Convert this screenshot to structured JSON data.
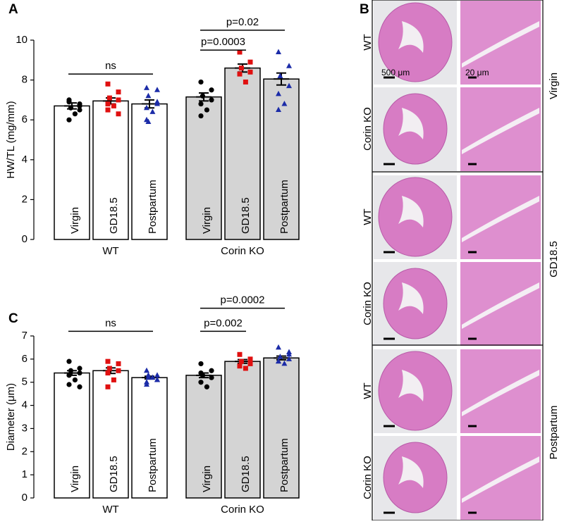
{
  "chart_data": [
    {
      "type": "bar",
      "panel": "A",
      "ylabel": "HW/TL (mg/mm)",
      "categories": [
        "Virgin",
        "GD18.5",
        "Postpartum",
        "Virgin",
        "GD18.5",
        "Postpartum"
      ],
      "groups": [
        "WT",
        "Corin KO"
      ],
      "group_of": [
        0,
        0,
        0,
        1,
        1,
        1
      ],
      "group_colors": [
        "#ffffff",
        "#d4d4d4"
      ],
      "point_colors": [
        "#000000",
        "#e01010",
        "#1c2ca8"
      ],
      "point_markers": [
        "circle",
        "square",
        "triangle"
      ],
      "values": [
        6.7,
        6.95,
        6.8,
        7.15,
        8.6,
        8.05
      ],
      "errors": [
        0.15,
        0.15,
        0.2,
        0.2,
        0.2,
        0.3
      ],
      "points": [
        [
          7.0,
          6.8,
          6.6,
          6.5,
          6.9,
          6.3,
          6.0,
          6.7
        ],
        [
          7.8,
          7.4,
          7.1,
          7.0,
          6.8,
          6.7,
          6.5,
          6.3
        ],
        [
          7.6,
          7.5,
          7.2,
          6.9,
          6.6,
          6.4,
          6.0,
          6.8,
          5.9
        ],
        [
          7.9,
          7.5,
          7.2,
          7.0,
          6.8,
          6.5,
          6.2
        ],
        [
          9.4,
          8.9,
          8.6,
          8.4,
          8.3,
          7.9
        ],
        [
          9.4,
          8.7,
          8.2,
          7.7,
          7.3,
          6.8,
          6.5
        ]
      ],
      "ylim": [
        0,
        10
      ],
      "yticks": [
        0,
        2,
        4,
        6,
        8,
        10
      ],
      "annotations": [
        {
          "text": "ns",
          "from": 0,
          "to": 2,
          "y": 8.3
        },
        {
          "text": "p=0.0003",
          "from": 3,
          "to": 4,
          "y": 9.5
        },
        {
          "text": "p=0.02",
          "from": 3,
          "to": 5,
          "y": 10.5
        }
      ]
    },
    {
      "type": "bar",
      "panel": "C",
      "ylabel": "Diameter (μm)",
      "categories": [
        "Virgin",
        "GD18.5",
        "Postpartum",
        "Virgin",
        "GD18.5",
        "Postpartum"
      ],
      "groups": [
        "WT",
        "Corin KO"
      ],
      "group_of": [
        0,
        0,
        0,
        1,
        1,
        1
      ],
      "group_colors": [
        "#ffffff",
        "#d4d4d4"
      ],
      "point_colors": [
        "#000000",
        "#e01010",
        "#1c2ca8"
      ],
      "point_markers": [
        "circle",
        "square",
        "triangle"
      ],
      "values": [
        5.4,
        5.5,
        5.2,
        5.3,
        5.9,
        6.05
      ],
      "errors": [
        0.1,
        0.12,
        0.06,
        0.1,
        0.08,
        0.08
      ],
      "points": [
        [
          5.9,
          5.6,
          5.5,
          5.4,
          5.3,
          5.1,
          4.9,
          4.8
        ],
        [
          5.9,
          5.8,
          5.6,
          5.5,
          5.4,
          5.1,
          4.8
        ],
        [
          5.5,
          5.3,
          5.2,
          5.1,
          5.0,
          5.2,
          4.9,
          5.1,
          5.3
        ],
        [
          5.8,
          5.5,
          5.3,
          5.2,
          5.0,
          4.8,
          5.4
        ],
        [
          6.2,
          6.0,
          5.9,
          5.8,
          5.7,
          5.6
        ],
        [
          6.5,
          6.3,
          6.1,
          6.0,
          5.9,
          5.8,
          5.9,
          6.2
        ]
      ],
      "ylim": [
        0,
        7
      ],
      "yticks": [
        0,
        1,
        2,
        3,
        4,
        5,
        6,
        7
      ],
      "annotations": [
        {
          "text": "ns",
          "from": 0,
          "to": 2,
          "y": 7.2
        },
        {
          "text": "p=0.002",
          "from": 3,
          "to": 4,
          "y": 7.2
        },
        {
          "text": "p=0.0002",
          "from": 3,
          "to": 5,
          "y": 8.2
        }
      ]
    }
  ],
  "panel_b": {
    "label": "B",
    "genotypes": [
      "WT",
      "Corin KO",
      "WT",
      "Corin KO",
      "WT",
      "Corin KO"
    ],
    "stages": [
      "Virgin",
      "GD18.5",
      "Postpartum"
    ],
    "scale_bars": [
      "500 μm",
      "20 μm"
    ]
  }
}
